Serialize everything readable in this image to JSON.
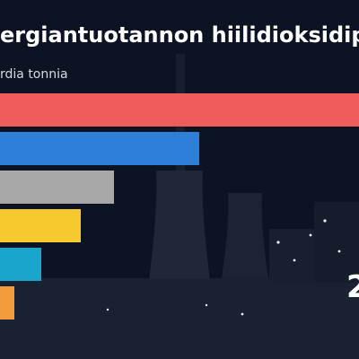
{
  "chart_data": {
    "type": "bar",
    "orientation": "horizontal",
    "title": "ergiantuotannon hiilidioksidipä",
    "subtitle": "rdia tonnia",
    "year_label": "2",
    "categories": [
      "",
      "",
      "",
      "",
      "",
      ""
    ],
    "values": [
      400,
      222,
      127,
      90,
      46,
      16
    ],
    "xlim": [
      0,
      400
    ],
    "grid": false,
    "colors": [
      "#ef5a5a",
      "#2e7fd9",
      "#a8a8a8",
      "#f7c92e",
      "#1aa6cc",
      "#f39a3b"
    ]
  },
  "background": {
    "sky_color": "#0c1322",
    "building_color": "#182233",
    "light_color": "#e9eef6"
  }
}
